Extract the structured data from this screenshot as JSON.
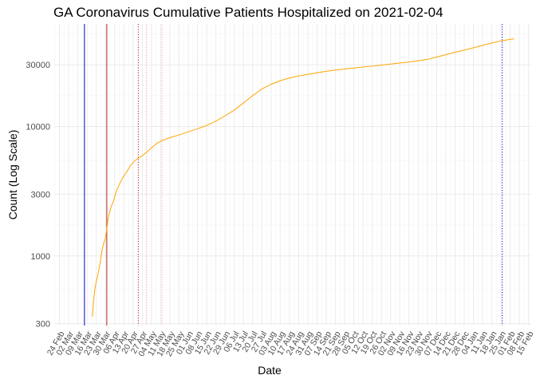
{
  "chart_data": {
    "type": "line",
    "title": "GA Coronavirus Cumulative Patients Hospitalized on 2021-02-04",
    "xlabel": "Date",
    "ylabel": "Count (Log Scale)",
    "y_scale": "log",
    "ylim": [
      290,
      62000
    ],
    "xlim": [
      "2020-02-20",
      "2021-02-17"
    ],
    "grid": true,
    "y_ticks": [
      300,
      1000,
      3000,
      10000,
      30000
    ],
    "y_tick_labels": [
      "300",
      "1000",
      "3000",
      "10000",
      "30000"
    ],
    "x_ticks": [
      "2020-02-24",
      "2020-03-02",
      "2020-03-09",
      "2020-03-16",
      "2020-03-23",
      "2020-03-30",
      "2020-04-06",
      "2020-04-13",
      "2020-04-20",
      "2020-04-27",
      "2020-05-04",
      "2020-05-11",
      "2020-05-18",
      "2020-05-25",
      "2020-06-01",
      "2020-06-08",
      "2020-06-15",
      "2020-06-22",
      "2020-06-29",
      "2020-07-06",
      "2020-07-13",
      "2020-07-20",
      "2020-07-27",
      "2020-08-03",
      "2020-08-10",
      "2020-08-17",
      "2020-08-24",
      "2020-08-31",
      "2020-09-07",
      "2020-09-14",
      "2020-09-21",
      "2020-09-28",
      "2020-10-05",
      "2020-10-12",
      "2020-10-19",
      "2020-10-26",
      "2020-11-02",
      "2020-11-09",
      "2020-11-16",
      "2020-11-23",
      "2020-11-30",
      "2020-12-07",
      "2020-12-14",
      "2020-12-21",
      "2020-12-28",
      "2021-01-04",
      "2021-01-11",
      "2021-01-18",
      "2021-01-25",
      "2021-02-01",
      "2021-02-08",
      "2021-02-15"
    ],
    "x_tick_labels": [
      "24 Feb",
      "02 Mar",
      "09 Mar",
      "16 Mar",
      "23 Mar",
      "30 Mar",
      "06 Apr",
      "13 Apr",
      "20 Apr",
      "27 Apr",
      "04 May",
      "11 May",
      "18 May",
      "25 May",
      "01 Jun",
      "08 Jun",
      "15 Jun",
      "22 Jun",
      "29 Jun",
      "06 Jul",
      "13 Jul",
      "20 Jul",
      "27 Jul",
      "03 Aug",
      "10 Aug",
      "17 Aug",
      "24 Aug",
      "31 Aug",
      "07 Sep",
      "14 Sep",
      "21 Sep",
      "28 Sep",
      "05 Oct",
      "12 Oct",
      "19 Oct",
      "26 Oct",
      "02 Nov",
      "09 Nov",
      "16 Nov",
      "23 Nov",
      "30 Nov",
      "07 Dec",
      "14 Dec",
      "21 Dec",
      "28 Dec",
      "04 Jan",
      "11 Jan",
      "18 Jan",
      "25 Jan",
      "01 Feb",
      "08 Feb",
      "15 Feb"
    ],
    "series": [
      {
        "color": "#FFA500",
        "points": [
          [
            "2020-03-20",
            340
          ],
          [
            "2020-03-21",
            460
          ],
          [
            "2020-03-22",
            560
          ],
          [
            "2020-03-23",
            640
          ],
          [
            "2020-03-24",
            700
          ],
          [
            "2020-03-25",
            780
          ],
          [
            "2020-03-26",
            900
          ],
          [
            "2020-03-27",
            1050
          ],
          [
            "2020-03-28",
            1180
          ],
          [
            "2020-03-29",
            1280
          ],
          [
            "2020-03-30",
            1380
          ],
          [
            "2020-03-31",
            1600
          ],
          [
            "2020-04-01",
            1950
          ],
          [
            "2020-04-02",
            2150
          ],
          [
            "2020-04-03",
            2350
          ],
          [
            "2020-04-04",
            2500
          ],
          [
            "2020-04-05",
            2650
          ],
          [
            "2020-04-06",
            2850
          ],
          [
            "2020-04-07",
            3100
          ],
          [
            "2020-04-08",
            3300
          ],
          [
            "2020-04-10",
            3650
          ],
          [
            "2020-04-12",
            4000
          ],
          [
            "2020-04-14",
            4300
          ],
          [
            "2020-04-16",
            4600
          ],
          [
            "2020-04-18",
            5000
          ],
          [
            "2020-04-21",
            5400
          ],
          [
            "2020-04-24",
            5700
          ],
          [
            "2020-04-27",
            5950
          ],
          [
            "2020-04-30",
            6300
          ],
          [
            "2020-05-04",
            6850
          ],
          [
            "2020-05-08",
            7400
          ],
          [
            "2020-05-12",
            7800
          ],
          [
            "2020-05-18",
            8200
          ],
          [
            "2020-05-25",
            8600
          ],
          [
            "2020-06-01",
            9100
          ],
          [
            "2020-06-08",
            9600
          ],
          [
            "2020-06-15",
            10200
          ],
          [
            "2020-06-22",
            11000
          ],
          [
            "2020-06-29",
            12100
          ],
          [
            "2020-07-06",
            13400
          ],
          [
            "2020-07-13",
            15200
          ],
          [
            "2020-07-20",
            17300
          ],
          [
            "2020-07-27",
            19500
          ],
          [
            "2020-08-03",
            21200
          ],
          [
            "2020-08-10",
            22600
          ],
          [
            "2020-08-17",
            23700
          ],
          [
            "2020-08-24",
            24600
          ],
          [
            "2020-08-31",
            25300
          ],
          [
            "2020-09-07",
            26000
          ],
          [
            "2020-09-14",
            26700
          ],
          [
            "2020-09-21",
            27300
          ],
          [
            "2020-09-28",
            27800
          ],
          [
            "2020-10-05",
            28300
          ],
          [
            "2020-10-12",
            28800
          ],
          [
            "2020-10-19",
            29300
          ],
          [
            "2020-10-26",
            29800
          ],
          [
            "2020-11-02",
            30400
          ],
          [
            "2020-11-09",
            30900
          ],
          [
            "2020-11-16",
            31500
          ],
          [
            "2020-11-23",
            32200
          ],
          [
            "2020-11-30",
            33000
          ],
          [
            "2020-12-07",
            34400
          ],
          [
            "2020-12-14",
            35900
          ],
          [
            "2020-12-21",
            37400
          ],
          [
            "2020-12-28",
            38900
          ],
          [
            "2021-01-04",
            40600
          ],
          [
            "2021-01-11",
            42400
          ],
          [
            "2021-01-18",
            44200
          ],
          [
            "2021-01-25",
            45900
          ],
          [
            "2021-02-01",
            47100
          ],
          [
            "2021-02-04",
            47600
          ]
        ]
      }
    ],
    "vertical_lines": [
      {
        "date": "2020-03-14",
        "color": "#0000CD",
        "style": "solid"
      },
      {
        "date": "2020-03-31",
        "color": "#B22222",
        "style": "solid"
      },
      {
        "date": "2020-04-24",
        "color": "#B22222",
        "style": "dotted"
      },
      {
        "date": "2020-04-30",
        "color": "#F4A0A0",
        "style": "dotted"
      },
      {
        "date": "2020-05-12",
        "color": "#F4A0A0",
        "style": "dotted"
      },
      {
        "date": "2021-01-26",
        "color": "#0000CD",
        "style": "dotted"
      }
    ]
  }
}
